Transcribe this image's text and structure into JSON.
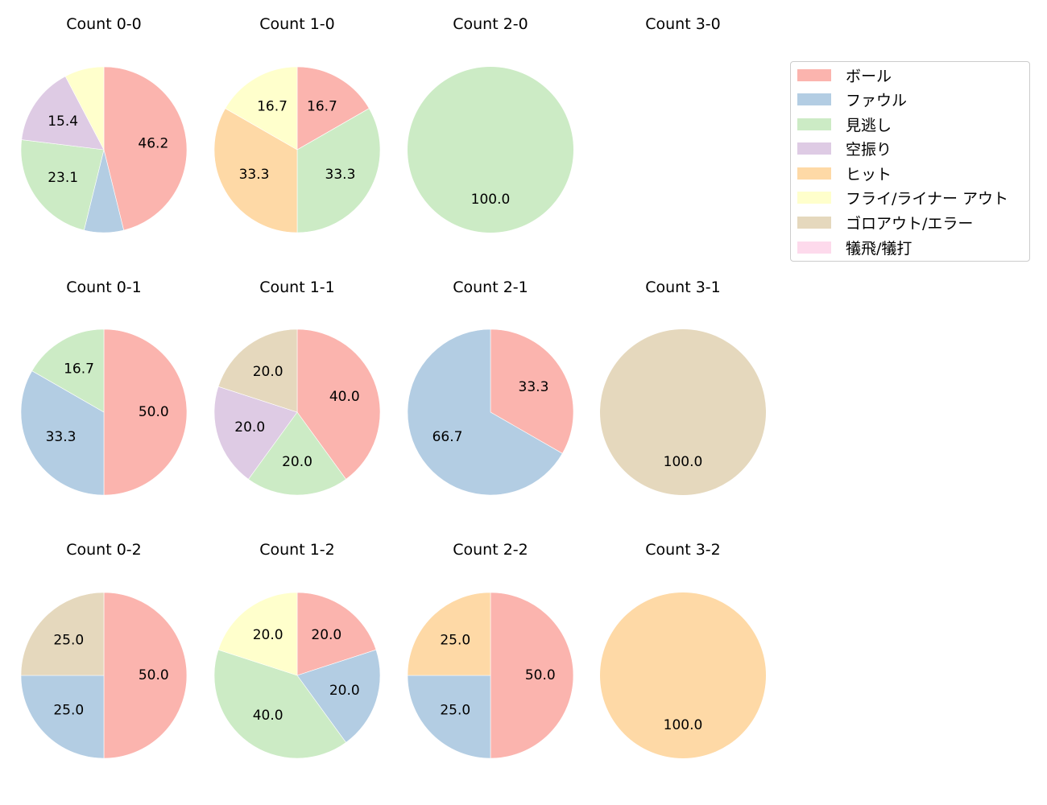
{
  "chart_data": {
    "type": "pie",
    "title": "",
    "legend": {
      "position": "upper right",
      "entries": [
        "ボール",
        "ファウル",
        "見逃し",
        "空振り",
        "ヒット",
        "フライ/ライナー アウト",
        "ゴロアウト/エラー",
        "犠飛/犠打"
      ]
    },
    "categories": [
      "ボール",
      "ファウル",
      "見逃し",
      "空振り",
      "ヒット",
      "フライ/ライナー アウト",
      "ゴロアウト/エラー",
      "犠飛/犠打"
    ],
    "colors": [
      "#fbb4ae",
      "#b3cde3",
      "#ccebc5",
      "#decbe4",
      "#fed9a6",
      "#ffffcc",
      "#e5d8bd",
      "#fddaec"
    ],
    "start_angle": 90,
    "direction": "clockwise",
    "label_format": "%.1f",
    "charts": [
      {
        "title": "Count 0-0",
        "row": 0,
        "col": 0,
        "values": [
          46.2,
          7.7,
          23.1,
          15.4,
          0,
          7.7,
          0,
          0
        ],
        "labels": [
          "46.2",
          "",
          "23.1",
          "15.4",
          "",
          "",
          "",
          ""
        ]
      },
      {
        "title": "Count 1-0",
        "row": 0,
        "col": 1,
        "values": [
          16.7,
          0,
          33.3,
          0,
          33.3,
          16.7,
          0,
          0
        ],
        "labels": [
          "16.7",
          "",
          "33.3",
          "",
          "33.3",
          "16.7",
          "",
          ""
        ]
      },
      {
        "title": "Count 2-0",
        "row": 0,
        "col": 2,
        "values": [
          0,
          0,
          100.0,
          0,
          0,
          0,
          0,
          0
        ],
        "labels": [
          "",
          "",
          "100.0",
          "",
          "",
          "",
          "",
          ""
        ]
      },
      {
        "title": "Count 3-0",
        "row": 0,
        "col": 3,
        "values": [
          0,
          0,
          0,
          0,
          0,
          0,
          0,
          0
        ],
        "labels": [
          "",
          "",
          "",
          "",
          "",
          "",
          "",
          ""
        ]
      },
      {
        "title": "Count 0-1",
        "row": 1,
        "col": 0,
        "values": [
          50.0,
          33.3,
          16.7,
          0,
          0,
          0,
          0,
          0
        ],
        "labels": [
          "50.0",
          "33.3",
          "16.7",
          "",
          "",
          "",
          "",
          ""
        ]
      },
      {
        "title": "Count 1-1",
        "row": 1,
        "col": 1,
        "values": [
          40.0,
          0,
          20.0,
          20.0,
          0,
          0,
          20.0,
          0
        ],
        "labels": [
          "40.0",
          "",
          "20.0",
          "20.0",
          "",
          "",
          "20.0",
          ""
        ]
      },
      {
        "title": "Count 2-1",
        "row": 1,
        "col": 2,
        "values": [
          33.3,
          66.7,
          0,
          0,
          0,
          0,
          0,
          0
        ],
        "labels": [
          "33.3",
          "66.7",
          "",
          "",
          "",
          "",
          "",
          ""
        ]
      },
      {
        "title": "Count 3-1",
        "row": 1,
        "col": 3,
        "values": [
          0,
          0,
          0,
          0,
          0,
          0,
          100.0,
          0
        ],
        "labels": [
          "",
          "",
          "",
          "",
          "",
          "",
          "100.0",
          ""
        ]
      },
      {
        "title": "Count 0-2",
        "row": 2,
        "col": 0,
        "values": [
          50.0,
          25.0,
          0,
          0,
          0,
          0,
          25.0,
          0
        ],
        "labels": [
          "50.0",
          "25.0",
          "",
          "",
          "",
          "",
          "25.0",
          ""
        ]
      },
      {
        "title": "Count 1-2",
        "row": 2,
        "col": 1,
        "values": [
          20.0,
          20.0,
          40.0,
          0,
          0,
          20.0,
          0,
          0
        ],
        "labels": [
          "20.0",
          "20.0",
          "40.0",
          "",
          "",
          "20.0",
          "",
          ""
        ]
      },
      {
        "title": "Count 2-2",
        "row": 2,
        "col": 2,
        "values": [
          50.0,
          25.0,
          0,
          0,
          25.0,
          0,
          0,
          0
        ],
        "labels": [
          "50.0",
          "25.0",
          "",
          "",
          "25.0",
          "",
          "",
          ""
        ]
      },
      {
        "title": "Count 3-2",
        "row": 2,
        "col": 3,
        "values": [
          0,
          0,
          0,
          0,
          100.0,
          0,
          0,
          0
        ],
        "labels": [
          "",
          "",
          "",
          "",
          "100.0",
          "",
          "",
          ""
        ]
      }
    ]
  }
}
